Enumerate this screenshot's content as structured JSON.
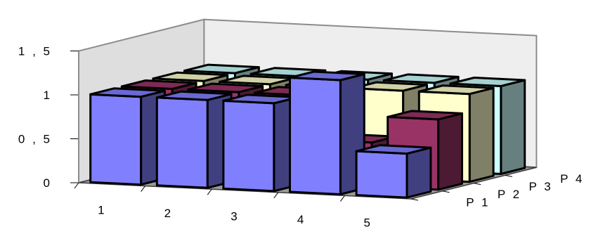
{
  "chart_data": {
    "type": "bar",
    "title": "",
    "xlabel": "",
    "ylabel": "",
    "ylim": [
      0,
      1.5
    ],
    "y_ticks": [
      {
        "value": 0,
        "label": "0"
      },
      {
        "value": 0.5,
        "label": "0 , 5"
      },
      {
        "value": 1,
        "label": "1"
      },
      {
        "value": 1.5,
        "label": "1 , 5"
      }
    ],
    "categories": [
      "1",
      "2",
      "3",
      "4",
      "5"
    ],
    "series": [
      {
        "name": "P 1",
        "values": [
          1.0,
          1.0,
          1.0,
          1.3,
          0.5
        ],
        "color": "#8080ff"
      },
      {
        "name": "P 2",
        "values": [
          1.0,
          1.0,
          1.0,
          0.5,
          0.8
        ],
        "color": "#993366"
      },
      {
        "name": "P 3",
        "values": [
          1.0,
          1.0,
          1.0,
          1.0,
          1.0
        ],
        "color": "#ffffcc"
      },
      {
        "name": "P 4",
        "values": [
          1.0,
          1.0,
          1.0,
          1.0,
          1.0
        ],
        "color": "#ccffff"
      }
    ],
    "legend": "none",
    "grid": false,
    "projection": "3d"
  }
}
